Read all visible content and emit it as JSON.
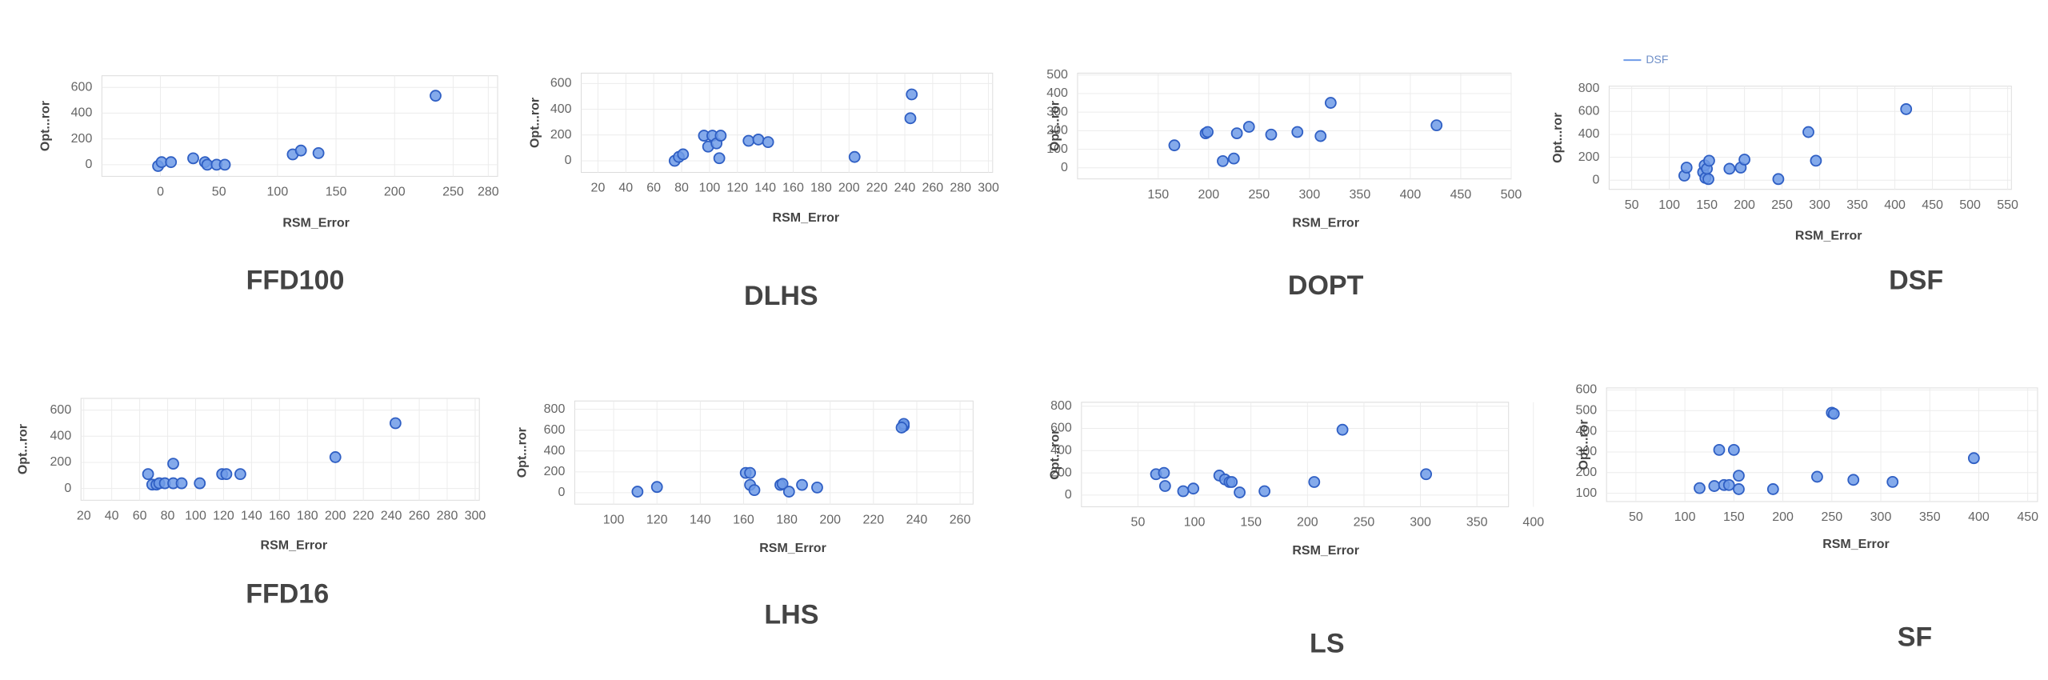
{
  "chart_data": [
    {
      "type": "scatter",
      "title": "FFD100",
      "xlabel": "RSM_Error",
      "ylabel": "Opt...ror",
      "color": "#6f9be8",
      "edge_color": "#2f5fc4",
      "grid": true,
      "x": [
        -2,
        1,
        9,
        28,
        38,
        40,
        48,
        55,
        113,
        120,
        135,
        235
      ],
      "values": [
        -10,
        20,
        20,
        50,
        20,
        0,
        0,
        0,
        80,
        110,
        90,
        535
      ],
      "xlim": [
        -50,
        288
      ],
      "ylim": [
        -90,
        690
      ],
      "xticks": [
        0,
        50,
        100,
        150,
        200,
        250,
        280
      ],
      "yticks": [
        0,
        200,
        400,
        600
      ]
    },
    {
      "type": "scatter",
      "title": "DLHS",
      "xlabel": "RSM_Error",
      "ylabel": "Opt...ror",
      "color": "#6f9be8",
      "edge_color": "#2f5fc4",
      "grid": true,
      "x": [
        75,
        78,
        81,
        96,
        99,
        102,
        105,
        108,
        107,
        128,
        135,
        142,
        204,
        245,
        244
      ],
      "values": [
        0,
        30,
        50,
        195,
        110,
        195,
        135,
        195,
        20,
        155,
        165,
        145,
        30,
        515,
        330
      ],
      "xlim": [
        8,
        303
      ],
      "ylim": [
        -90,
        680
      ],
      "xticks": [
        20,
        40,
        60,
        80,
        100,
        120,
        140,
        160,
        180,
        200,
        220,
        240,
        260,
        280,
        300
      ],
      "yticks": [
        0,
        200,
        400,
        600
      ]
    },
    {
      "type": "scatter",
      "title": "DOPT",
      "xlabel": "RSM_Error",
      "ylabel": "Opt...ror",
      "color": "#6f9be8",
      "edge_color": "#2f5fc4",
      "grid": true,
      "x": [
        166,
        197,
        199,
        214,
        225,
        228,
        240,
        262,
        288,
        311,
        321,
        426
      ],
      "values": [
        121,
        186,
        193,
        36,
        50,
        186,
        221,
        179,
        193,
        171,
        350,
        229
      ],
      "xlim": [
        70,
        500
      ],
      "ylim": [
        -60,
        510
      ],
      "xticks": [
        150,
        200,
        250,
        300,
        350,
        400,
        450,
        500
      ],
      "yticks": [
        0,
        100,
        200,
        300,
        400,
        500
      ]
    },
    {
      "type": "scatter",
      "title": "DSF",
      "legend": "DSF",
      "xlabel": "RSM_Error",
      "ylabel": "Opt...ror",
      "color": "#6f9be8",
      "edge_color": "#2f5fc4",
      "grid": true,
      "x": [
        120,
        123,
        145,
        147,
        148,
        150,
        152,
        153,
        180,
        195,
        200,
        245,
        285,
        295,
        415
      ],
      "values": [
        40,
        110,
        70,
        130,
        20,
        100,
        10,
        170,
        100,
        110,
        180,
        10,
        420,
        170,
        620
      ],
      "xlim": [
        20,
        555
      ],
      "ylim": [
        -80,
        820
      ],
      "xticks": [
        50,
        100,
        150,
        200,
        250,
        300,
        350,
        400,
        450,
        500,
        550
      ],
      "yticks": [
        0,
        200,
        400,
        600,
        800
      ]
    },
    {
      "type": "scatter",
      "title": "FFD16",
      "xlabel": "RSM_Error",
      "ylabel": "Opt...ror",
      "color": "#6f9be8",
      "edge_color": "#2f5fc4",
      "grid": true,
      "x": [
        66,
        69,
        72,
        74,
        78,
        84,
        84,
        90,
        103,
        119,
        122,
        132,
        200,
        243
      ],
      "values": [
        110,
        30,
        30,
        40,
        40,
        40,
        190,
        40,
        40,
        110,
        110,
        110,
        240,
        500
      ],
      "xlim": [
        18,
        303
      ],
      "ylim": [
        -90,
        690
      ],
      "xticks": [
        20,
        40,
        60,
        80,
        100,
        120,
        140,
        160,
        180,
        200,
        220,
        240,
        260,
        280,
        300
      ],
      "yticks": [
        0,
        200,
        400,
        600
      ]
    },
    {
      "type": "scatter",
      "title": "LHS",
      "xlabel": "RSM_Error",
      "ylabel": "Opt...ror",
      "color": "#6f9be8",
      "edge_color": "#2f5fc4",
      "grid": true,
      "x": [
        111,
        120,
        161,
        163,
        163,
        165,
        177,
        178,
        181,
        187,
        194,
        234,
        234,
        233
      ],
      "values": [
        10,
        55,
        190,
        190,
        75,
        25,
        75,
        85,
        10,
        75,
        50,
        640,
        660,
        625
      ],
      "xlim": [
        82,
        266
      ],
      "ylim": [
        -110,
        880
      ],
      "xticks": [
        100,
        120,
        140,
        160,
        180,
        200,
        220,
        240,
        260
      ],
      "yticks": [
        0,
        200,
        400,
        600,
        800
      ]
    },
    {
      "type": "scatter",
      "title": "LS",
      "xlabel": "RSM_Error",
      "ylabel": "Opt...ror",
      "color": "#6f9be8",
      "edge_color": "#2f5fc4",
      "grid": true,
      "x": [
        66,
        73,
        74,
        90,
        99,
        122,
        127,
        131,
        133,
        140,
        162,
        206,
        231,
        305
      ],
      "values": [
        188,
        200,
        82,
        35,
        59,
        176,
        141,
        118,
        118,
        24,
        35,
        118,
        588,
        188
      ],
      "xlim": [
        0,
        378
      ],
      "ylim": [
        -105,
        835
      ],
      "xticks": [
        50,
        100,
        150,
        200,
        250,
        300,
        350,
        400
      ],
      "yticks": [
        0,
        200,
        400,
        600,
        800
      ]
    },
    {
      "type": "scatter",
      "title": "SF",
      "xlabel": "RSM_Error",
      "ylabel": "Opt...ror",
      "color": "#6f9be8",
      "edge_color": "#2f5fc4",
      "grid": true,
      "x": [
        115,
        130,
        135,
        140,
        145,
        150,
        155,
        155,
        190,
        235,
        250,
        252,
        272,
        312,
        395
      ],
      "values": [
        125,
        135,
        310,
        140,
        140,
        310,
        185,
        120,
        120,
        180,
        490,
        485,
        165,
        155,
        270
      ],
      "xlim": [
        20,
        460
      ],
      "ylim": [
        60,
        610
      ],
      "xticks": [
        50,
        100,
        150,
        200,
        250,
        300,
        350,
        400,
        450
      ],
      "yticks": [
        100,
        200,
        300,
        400,
        500,
        600
      ]
    }
  ]
}
